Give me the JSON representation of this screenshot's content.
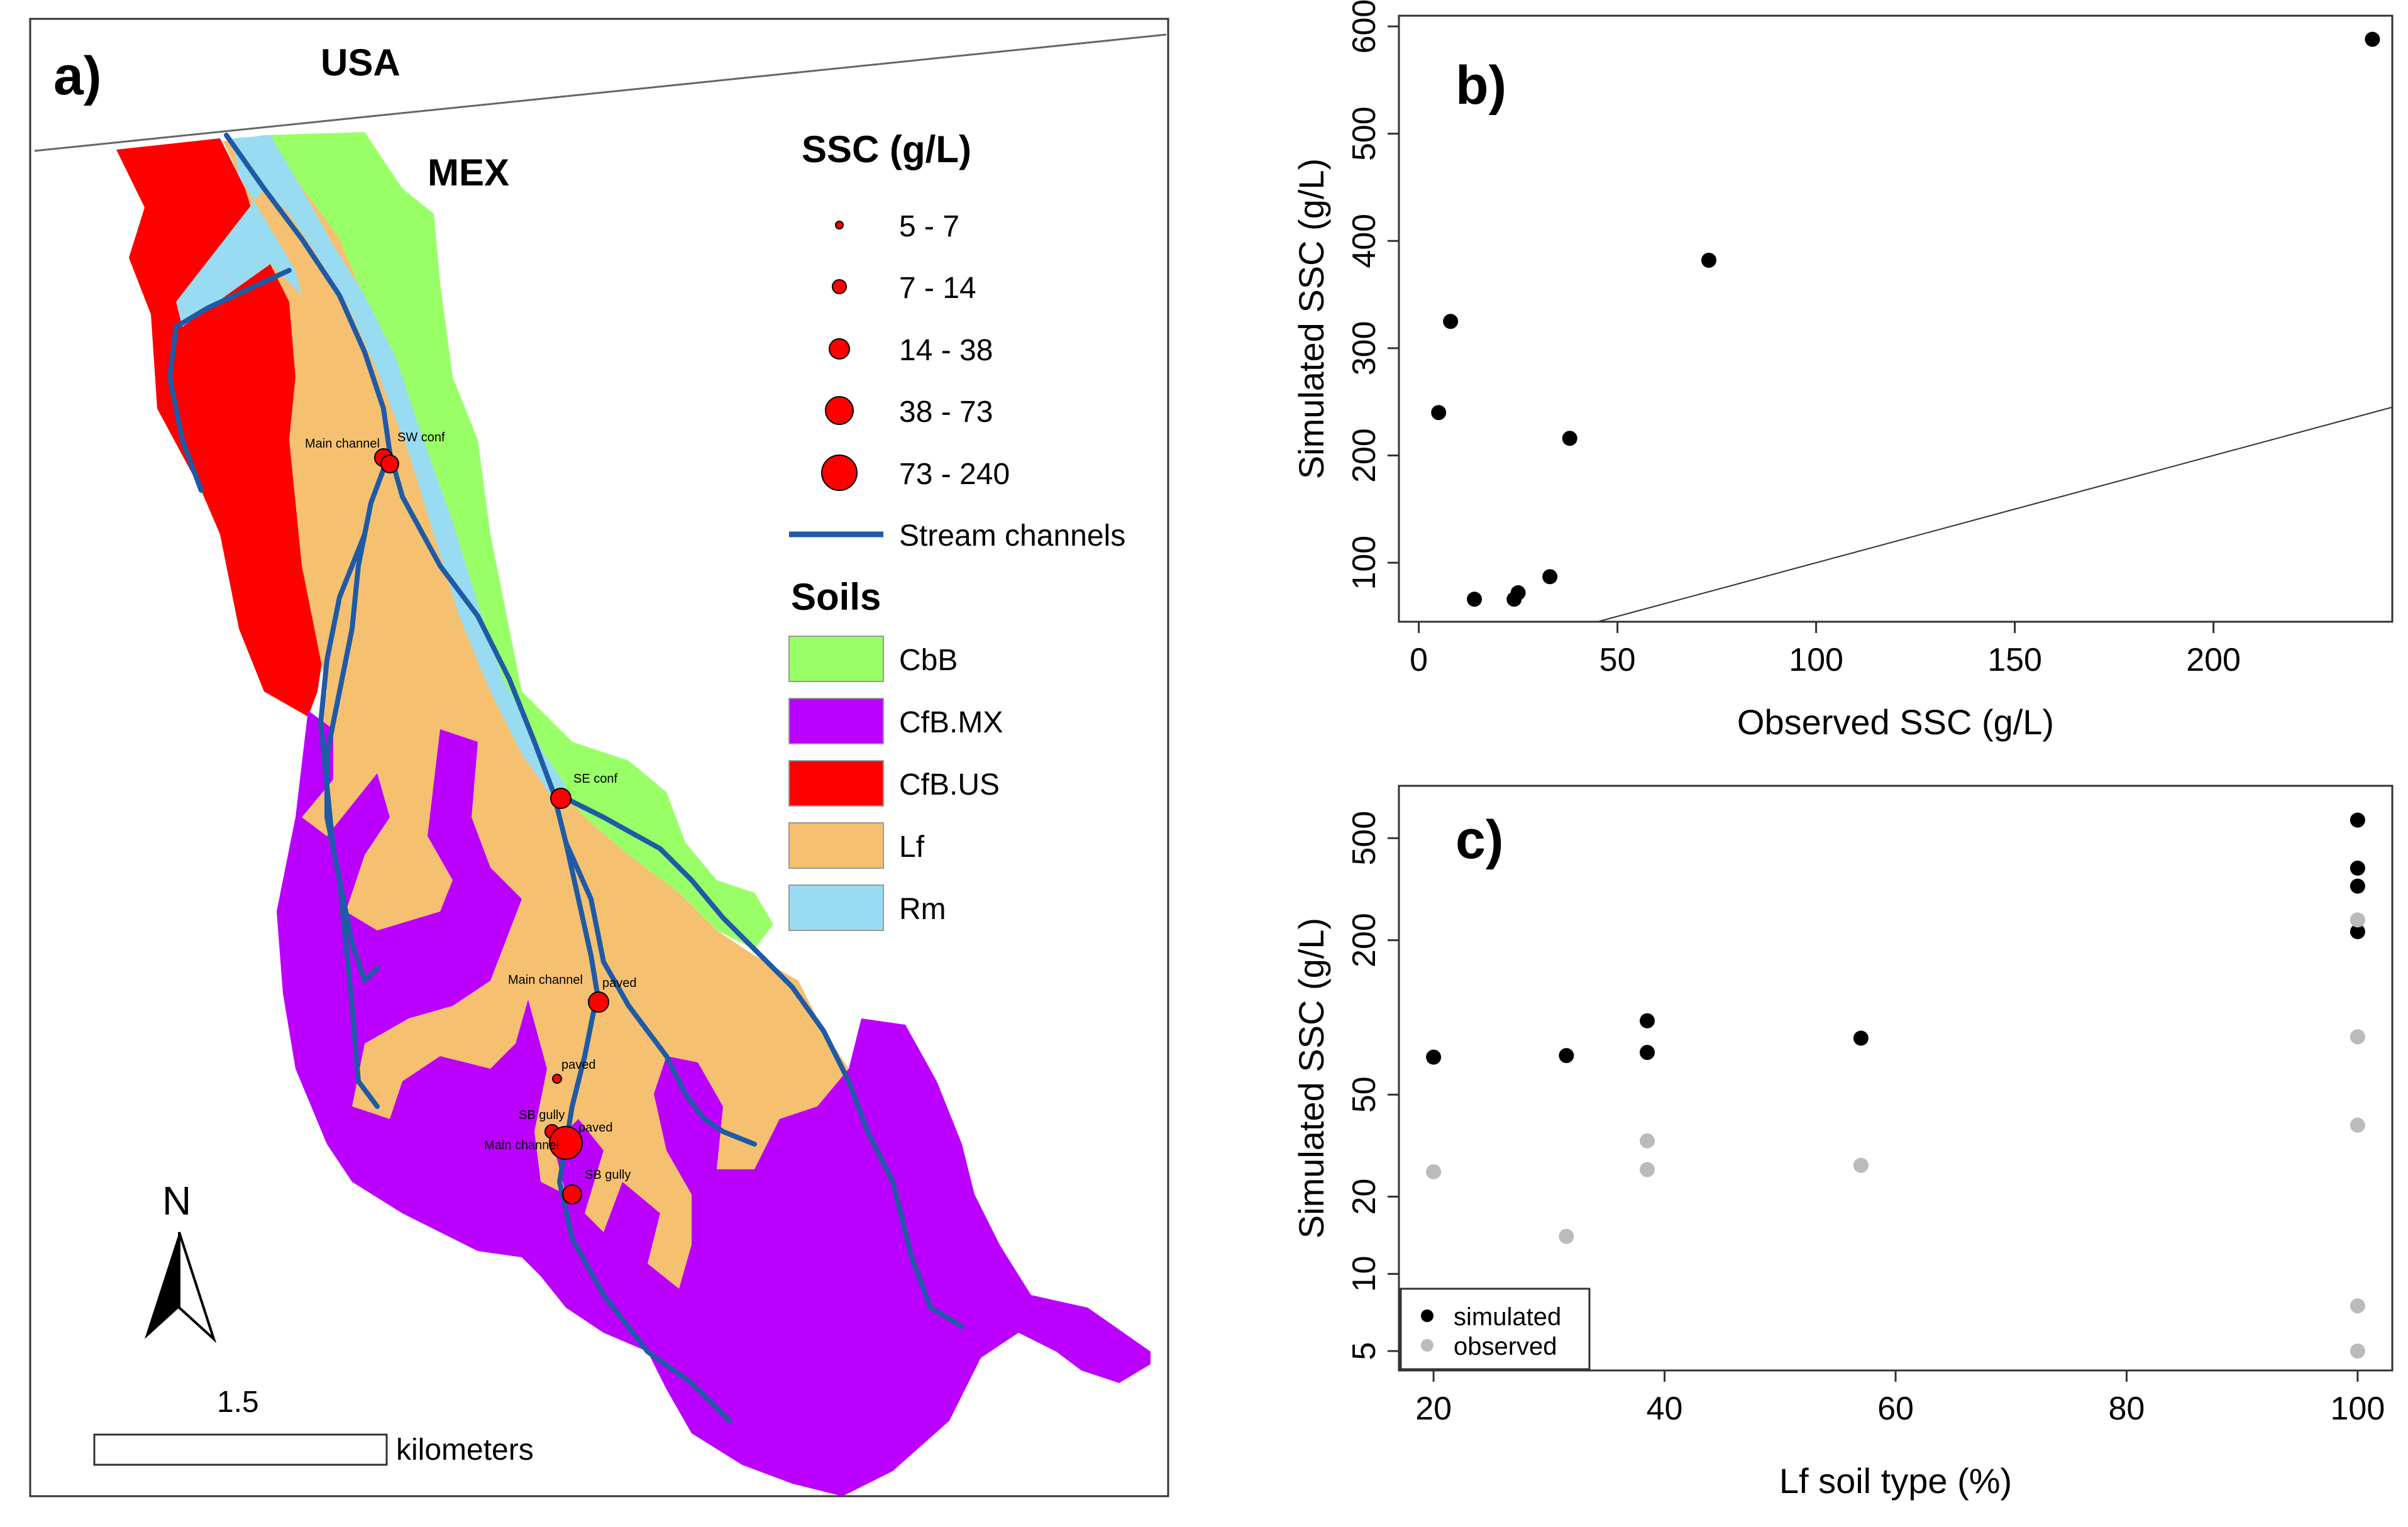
{
  "colors": {
    "CbB": "#99ff66",
    "CfB_MX": "#bb00ff",
    "CfB_US": "#ff0000",
    "Lf": "#f5c170",
    "Rm": "#99dcf2",
    "stream": "#1f5aa6",
    "site_fill": "#ff0000",
    "simulated": "#000000",
    "observed": "#bbbbbb"
  },
  "panel_a": {
    "panel_label": "a)",
    "country_usa": "USA",
    "country_mex": "MEX",
    "ssc_legend_title": "SSC (g/L)",
    "ssc_classes": [
      "5 - 7",
      "7 - 14",
      "14 - 38",
      "38 - 73",
      "73 - 240"
    ],
    "stream_label": "Stream channels",
    "soils_title": "Soils",
    "soils": [
      {
        "name": "CbB",
        "color_key": "CbB"
      },
      {
        "name": "CfB.MX",
        "color_key": "CfB_MX"
      },
      {
        "name": "CfB.US",
        "color_key": "CfB_US"
      },
      {
        "name": "Lf",
        "color_key": "Lf"
      },
      {
        "name": "Rm",
        "color_key": "Rm"
      }
    ],
    "site_labels": {
      "main_channel_1": "Main channel",
      "sw_conf": "SW conf",
      "se_conf": "SE conf",
      "main_channel_2": "Main channel",
      "paved_1": "paved",
      "paved_2": "paved",
      "sb_gully_1": "SB gully",
      "main_channel_3": "Main channel",
      "paved_3": "paved",
      "sb_gully_2": "SB gully"
    },
    "north_label": "N",
    "scale_value": "1.5",
    "scale_unit": "kilometers"
  },
  "chart_data": [
    {
      "panel": "b)",
      "type": "scatter",
      "xlabel": "Observed SSC (g/L)",
      "ylabel": "Simulated SSC (g/L)",
      "xlim": [
        -5,
        245
      ],
      "ylim": [
        45,
        610
      ],
      "xticks": [
        0,
        50,
        100,
        150,
        200
      ],
      "yticks": [
        100,
        200,
        300,
        400,
        500,
        600
      ],
      "points": [
        {
          "x": 5,
          "y": 240
        },
        {
          "x": 8,
          "y": 325
        },
        {
          "x": 14,
          "y": 66
        },
        {
          "x": 24,
          "y": 66
        },
        {
          "x": 25,
          "y": 72
        },
        {
          "x": 33,
          "y": 87
        },
        {
          "x": 38,
          "y": 216
        },
        {
          "x": 73,
          "y": 382
        },
        {
          "x": 240,
          "y": 588
        }
      ],
      "reference_line": "1:1"
    },
    {
      "panel": "c)",
      "type": "scatter",
      "xlabel": "Lf soil type (%)",
      "ylabel": "Simulated SSC (g/L)",
      "xlim": [
        17,
        103
      ],
      "ylim": [
        4.2,
        800
      ],
      "log_y": true,
      "xticks": [
        20,
        40,
        60,
        80,
        100
      ],
      "yticks": [
        5,
        10,
        20,
        50,
        200,
        500
      ],
      "legend": [
        "simulated",
        "observed"
      ],
      "legend_position": "bottom-left",
      "series": [
        {
          "name": "simulated",
          "color_key": "simulated",
          "points": [
            {
              "x": 20,
              "y": 70
            },
            {
              "x": 31.5,
              "y": 71
            },
            {
              "x": 38.5,
              "y": 97
            },
            {
              "x": 38.5,
              "y": 73
            },
            {
              "x": 57,
              "y": 83
            },
            {
              "x": 100,
              "y": 588
            },
            {
              "x": 100,
              "y": 382
            },
            {
              "x": 100,
              "y": 325
            },
            {
              "x": 100,
              "y": 216
            }
          ]
        },
        {
          "name": "observed",
          "color_key": "observed",
          "points": [
            {
              "x": 20,
              "y": 25
            },
            {
              "x": 31.5,
              "y": 14
            },
            {
              "x": 38.5,
              "y": 33
            },
            {
              "x": 38.5,
              "y": 25.5
            },
            {
              "x": 57,
              "y": 26.5
            },
            {
              "x": 100,
              "y": 240
            },
            {
              "x": 100,
              "y": 84
            },
            {
              "x": 100,
              "y": 38
            },
            {
              "x": 100,
              "y": 7.5
            },
            {
              "x": 100,
              "y": 5
            }
          ]
        }
      ]
    }
  ]
}
